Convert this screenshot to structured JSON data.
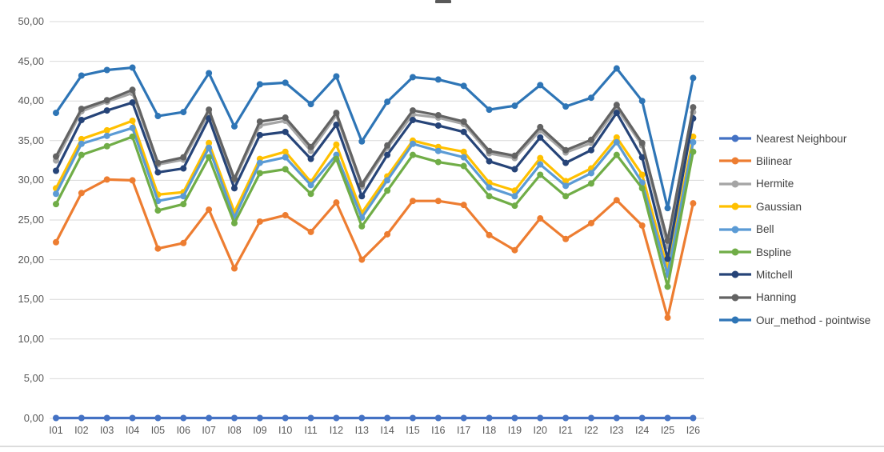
{
  "chart_data": {
    "type": "line",
    "title": "",
    "note": "title cropped off at top of screenshot",
    "grid": true,
    "legend_position": "right",
    "ylim": [
      0,
      50
    ],
    "ytick_step": 5,
    "y_tick_labels": [
      "0,00",
      "5,00",
      "10,00",
      "15,00",
      "20,00",
      "25,00",
      "30,00",
      "35,00",
      "40,00",
      "45,00",
      "50,00"
    ],
    "categories": [
      "I01",
      "I02",
      "I03",
      "I04",
      "I05",
      "I06",
      "I07",
      "I08",
      "I09",
      "I10",
      "I11",
      "I12",
      "I13",
      "I14",
      "I15",
      "I16",
      "I17",
      "I18",
      "I19",
      "I20",
      "I21",
      "I22",
      "I23",
      "I24",
      "I25",
      "I26"
    ],
    "series": [
      {
        "name": "Nearest Neighbour",
        "color": "#4472C4",
        "values": [
          0.05,
          0.05,
          0.05,
          0.05,
          0.05,
          0.05,
          0.05,
          0.05,
          0.05,
          0.05,
          0.05,
          0.05,
          0.05,
          0.05,
          0.05,
          0.05,
          0.05,
          0.05,
          0.05,
          0.05,
          0.05,
          0.05,
          0.05,
          0.05,
          0.05,
          0.05
        ]
      },
      {
        "name": "Bilinear",
        "color": "#ED7D31",
        "values": [
          22.2,
          28.4,
          30.1,
          30.0,
          21.4,
          22.1,
          26.3,
          18.9,
          24.8,
          25.6,
          23.5,
          27.2,
          20.0,
          23.2,
          27.4,
          27.4,
          26.9,
          23.1,
          21.2,
          25.2,
          22.6,
          24.6,
          27.5,
          24.3,
          12.7,
          27.1
        ]
      },
      {
        "name": "Hermite",
        "color": "#A5A5A5",
        "values": [
          32.5,
          38.7,
          39.9,
          41.0,
          32.0,
          32.6,
          38.5,
          30.0,
          36.9,
          37.5,
          33.7,
          38.2,
          29.2,
          34.1,
          38.3,
          37.9,
          37.1,
          33.4,
          32.8,
          36.3,
          33.5,
          34.7,
          39.1,
          34.4,
          21.7,
          38.6
        ]
      },
      {
        "name": "Gaussian",
        "color": "#FFC000",
        "values": [
          29.0,
          35.2,
          36.3,
          37.5,
          28.2,
          28.5,
          34.7,
          26.0,
          32.7,
          33.6,
          29.8,
          34.5,
          25.9,
          30.5,
          35.0,
          34.2,
          33.6,
          29.7,
          28.7,
          32.8,
          29.9,
          31.5,
          35.4,
          30.7,
          18.8,
          35.5
        ]
      },
      {
        "name": "Bell",
        "color": "#5B9BD5",
        "values": [
          28.3,
          34.6,
          35.6,
          36.6,
          27.4,
          28.0,
          34.1,
          25.3,
          32.2,
          32.9,
          29.4,
          33.2,
          25.3,
          30.0,
          34.6,
          33.7,
          32.9,
          29.1,
          28.0,
          32.0,
          29.3,
          30.9,
          34.8,
          29.7,
          18.1,
          34.8
        ]
      },
      {
        "name": "Bspline",
        "color": "#70AD47",
        "values": [
          27.0,
          33.2,
          34.3,
          35.5,
          26.2,
          27.0,
          32.9,
          24.6,
          30.9,
          31.4,
          28.3,
          32.7,
          24.2,
          28.7,
          33.2,
          32.3,
          31.8,
          28.0,
          26.8,
          30.7,
          28.0,
          29.6,
          33.2,
          29.0,
          16.6,
          33.6
        ]
      },
      {
        "name": "Mitchell",
        "color": "#264478",
        "values": [
          31.2,
          37.6,
          38.8,
          39.8,
          31.0,
          31.5,
          37.8,
          29.0,
          35.7,
          36.1,
          32.7,
          37.0,
          28.0,
          33.2,
          37.6,
          36.9,
          36.1,
          32.4,
          31.4,
          35.4,
          32.2,
          33.8,
          38.5,
          32.9,
          20.1,
          37.8
        ]
      },
      {
        "name": "Hanning",
        "color": "#636363",
        "values": [
          33.0,
          39.0,
          40.1,
          41.4,
          32.2,
          32.9,
          38.9,
          30.2,
          37.4,
          37.9,
          34.2,
          38.5,
          29.5,
          34.4,
          38.8,
          38.2,
          37.4,
          33.7,
          33.1,
          36.7,
          33.8,
          35.1,
          39.5,
          34.7,
          22.4,
          39.2
        ]
      },
      {
        "name": "Our_method - pointwise",
        "color": "#2E75B6",
        "values": [
          38.5,
          43.2,
          43.9,
          44.2,
          38.1,
          38.6,
          43.5,
          36.8,
          42.1,
          42.3,
          39.6,
          43.1,
          34.9,
          39.9,
          43.0,
          42.7,
          41.9,
          38.9,
          39.4,
          42.0,
          39.3,
          40.4,
          44.1,
          40.0,
          26.5,
          42.9
        ]
      }
    ]
  }
}
